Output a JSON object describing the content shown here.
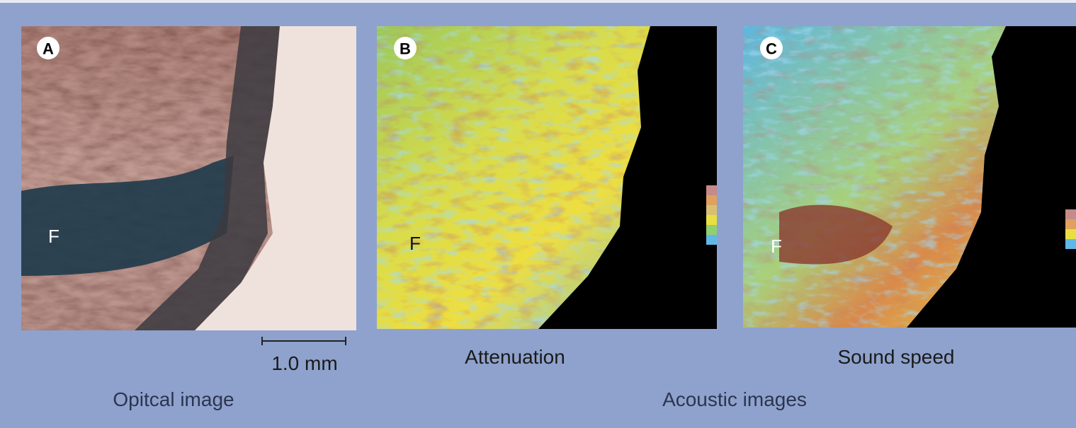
{
  "panels": [
    {
      "label": "A",
      "marker": "F",
      "caption": "1.0 mm"
    },
    {
      "label": "B",
      "marker": "F",
      "caption": "Attenuation"
    },
    {
      "label": "C",
      "marker": "F",
      "caption": "Sound speed"
    }
  ],
  "group_captions": [
    "Opitcal image",
    "Acoustic images"
  ]
}
